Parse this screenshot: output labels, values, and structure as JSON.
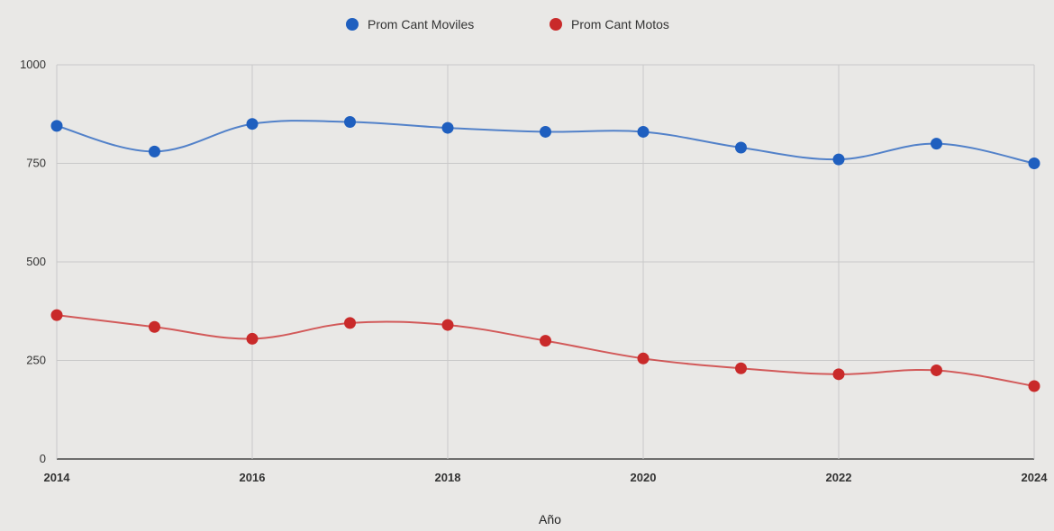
{
  "chart_data": {
    "type": "line",
    "xlabel": "Año",
    "ylabel": "",
    "x": [
      2014,
      2015,
      2016,
      2017,
      2018,
      2019,
      2020,
      2021,
      2022,
      2023,
      2024
    ],
    "xticks": [
      "2014",
      "2016",
      "2018",
      "2020",
      "2022",
      "2024"
    ],
    "xlim": [
      2014,
      2024
    ],
    "yticks": [
      "0",
      "250",
      "500",
      "750",
      "1000"
    ],
    "ylim": [
      0,
      1000
    ],
    "grid": true,
    "legend_position": "top",
    "series": [
      {
        "name": "Prom Cant Moviles",
        "color": "#1f5fbf",
        "values": [
          845,
          780,
          850,
          855,
          840,
          830,
          830,
          790,
          760,
          800,
          750
        ]
      },
      {
        "name": "Prom Cant Motos",
        "color": "#c92a2a",
        "values": [
          365,
          335,
          305,
          345,
          340,
          300,
          255,
          230,
          215,
          225,
          185
        ]
      }
    ]
  }
}
